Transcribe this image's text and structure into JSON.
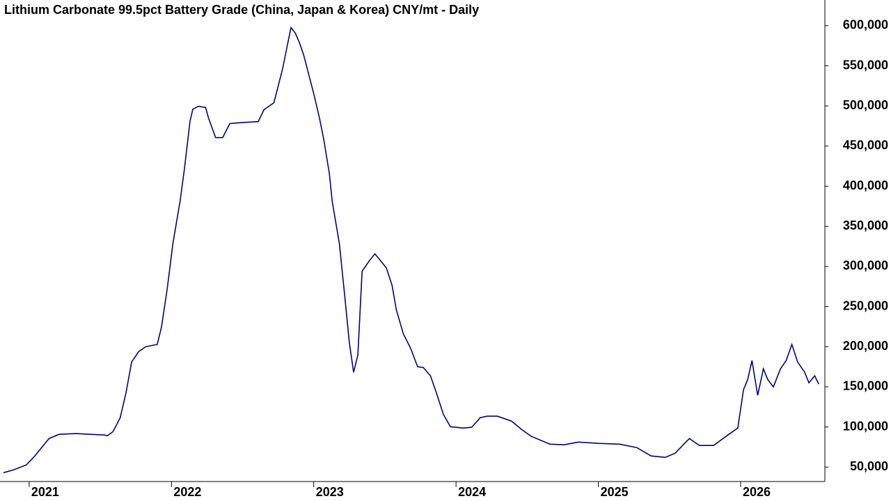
{
  "chart_data": {
    "type": "line",
    "title": "Lithium Carbonate 99.5pct Battery Grade (China, Japan & Korea) CNY/mt - Daily",
    "x": [
      2020.82,
      2020.89,
      2020.98,
      2021.04,
      2021.1,
      2021.14,
      2021.21,
      2021.33,
      2021.43,
      2021.53,
      2021.55,
      2021.59,
      2021.64,
      2021.68,
      2021.72,
      2021.77,
      2021.82,
      2021.9,
      2021.93,
      2021.97,
      2022.01,
      2022.06,
      2022.09,
      2022.13,
      2022.15,
      2022.19,
      2022.24,
      2022.26,
      2022.31,
      2022.36,
      2022.41,
      2022.46,
      2022.61,
      2022.65,
      2022.72,
      2022.78,
      2022.84,
      2022.87,
      2022.9,
      2022.93,
      2023.0,
      2023.04,
      2023.07,
      2023.11,
      2023.13,
      2023.18,
      2023.22,
      2023.25,
      2023.28,
      2023.31,
      2023.34,
      2023.39,
      2023.43,
      2023.47,
      2023.51,
      2023.55,
      2023.58,
      2023.63,
      2023.68,
      2023.73,
      2023.77,
      2023.82,
      2023.86,
      2023.91,
      2023.96,
      2024.05,
      2024.11,
      2024.17,
      2024.22,
      2024.29,
      2024.39,
      2024.46,
      2024.53,
      2024.66,
      2024.76,
      2024.86,
      2025.0,
      2025.15,
      2025.27,
      2025.37,
      2025.47,
      2025.54,
      2025.64,
      2025.71,
      2025.81,
      2025.91,
      2025.98,
      2026.02,
      2026.05,
      2026.08,
      2026.12,
      2026.16,
      2026.19,
      2026.23,
      2026.28,
      2026.32,
      2026.36,
      2026.4,
      2026.45,
      2026.48,
      2026.52,
      2026.55
    ],
    "series": [
      {
        "color": "#00007f",
        "values": [
          43000,
          46500,
          52600,
          63900,
          77000,
          85600,
          90800,
          91700,
          90800,
          89900,
          89000,
          94300,
          111600,
          142000,
          181000,
          194000,
          200000,
          202800,
          224500,
          272000,
          328600,
          380700,
          419800,
          480500,
          496000,
          499600,
          498000,
          485000,
          460600,
          460600,
          478000,
          478800,
          480500,
          495300,
          504000,
          545600,
          597700,
          590800,
          578600,
          563000,
          515300,
          485000,
          458800,
          415400,
          380700,
          328600,
          259200,
          205400,
          168000,
          189700,
          293900,
          307000,
          315600,
          307000,
          298200,
          276600,
          246200,
          215800,
          198400,
          175000,
          174100,
          163700,
          143700,
          116000,
          100300,
          98600,
          99500,
          111600,
          113400,
          113400,
          107300,
          96900,
          88200,
          78600,
          77800,
          81200,
          79500,
          78600,
          74300,
          63900,
          62100,
          67400,
          85600,
          76900,
          76900,
          89900,
          98600,
          146300,
          159400,
          182800,
          139400,
          172400,
          159400,
          149800,
          172400,
          182800,
          202800,
          181000,
          168000,
          155000,
          163700,
          153300
        ]
      }
    ],
    "xlim": [
      2020.795,
      2026.592
    ],
    "xticks": [
      2021,
      2022,
      2023,
      2024,
      2025,
      2026
    ],
    "ylim": [
      32000,
      632000
    ],
    "yticks": [
      {
        "value": 50000,
        "label": "50,000"
      },
      {
        "value": 100000,
        "label": "100,000"
      },
      {
        "value": 150000,
        "label": "150,000"
      },
      {
        "value": 200000,
        "label": "200,000"
      },
      {
        "value": 250000,
        "label": "250,000"
      },
      {
        "value": 300000,
        "label": "300,000"
      },
      {
        "value": 350000,
        "label": "350,000"
      },
      {
        "value": 400000,
        "label": "400,000"
      },
      {
        "value": 450000,
        "label": "450,000"
      },
      {
        "value": 500000,
        "label": "500,000"
      },
      {
        "value": 550000,
        "label": "550,000"
      },
      {
        "value": 600000,
        "label": "600,000"
      }
    ]
  }
}
